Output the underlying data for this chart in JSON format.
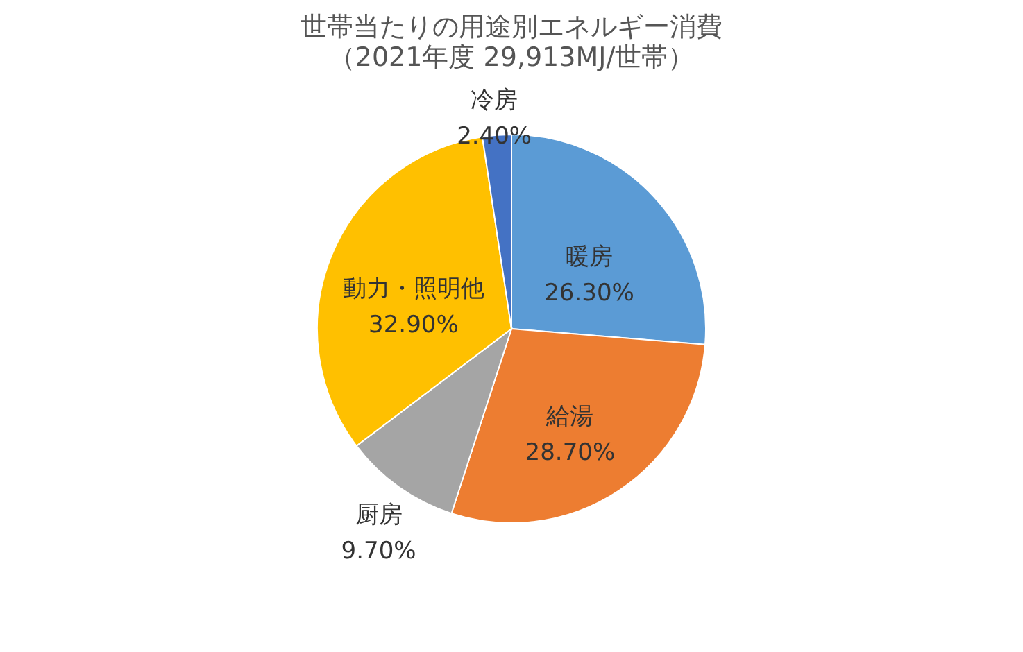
{
  "chart_data": {
    "type": "pie",
    "title": "世帯当たりの用途別エネルギー消費",
    "subtitle": "（2021年度 29,913MJ/世帯）",
    "categories": [
      "暖房",
      "給湯",
      "厨房",
      "動力・照明他",
      "冷房"
    ],
    "values": [
      26.3,
      28.7,
      9.7,
      32.9,
      2.4
    ],
    "value_labels": [
      "26.30%",
      "28.70%",
      "9.70%",
      "32.90%",
      "2.40%"
    ],
    "colors": [
      "#5b9bd5",
      "#ed7d31",
      "#a5a5a5",
      "#ffc000",
      "#4472c4"
    ],
    "legend": false
  }
}
